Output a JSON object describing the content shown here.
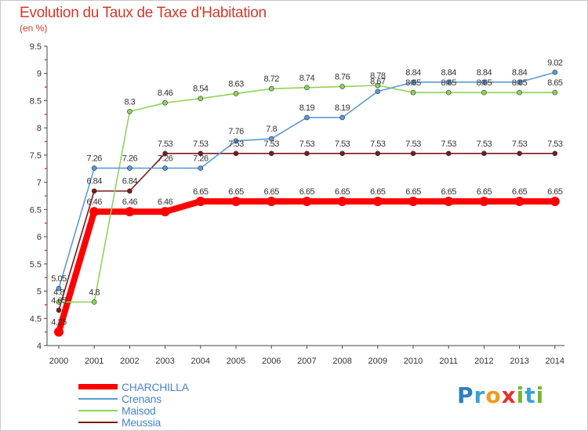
{
  "title": "Evolution du Taux de Taxe d'Habitation",
  "subtitle": "(en %)",
  "logo": {
    "text": "Proxiti",
    "letters": [
      "P",
      "r",
      "o",
      "x",
      "i",
      "t",
      "i"
    ],
    "colors": [
      "#2a7fc1",
      "#3aa3d6",
      "#f39a1e",
      "#e0342a",
      "#77b82a",
      "#3aa3d6",
      "#77b82a"
    ]
  },
  "chart_data": {
    "type": "line",
    "title": "Evolution du Taux de Taxe d'Habitation",
    "ylabel": "(en %)",
    "xlabel": "",
    "x": [
      2000,
      2001,
      2002,
      2003,
      2004,
      2005,
      2006,
      2007,
      2008,
      2009,
      2010,
      2011,
      2012,
      2013,
      2014
    ],
    "ylim": [
      4,
      9.5
    ],
    "yticks": [
      4,
      4.5,
      5,
      5.5,
      6,
      6.5,
      7,
      7.5,
      8,
      8.5,
      9,
      9.5
    ],
    "grid": false,
    "legend": "bottom-left",
    "series": [
      {
        "name": "CHARCHILLA",
        "color": "#ff0000",
        "values": [
          4.25,
          6.46,
          6.46,
          6.46,
          6.65,
          6.65,
          6.65,
          6.65,
          6.65,
          6.65,
          6.65,
          6.65,
          6.65,
          6.65,
          6.65
        ],
        "labels": [
          "4.25",
          "6.46",
          "6.46",
          "6.46",
          "6.65",
          "6.65",
          "6.65",
          "6.65",
          "6.65",
          "6.65",
          "6.65",
          "6.65",
          "6.65",
          "6.65",
          "6.65"
        ]
      },
      {
        "name": "Crenans",
        "color": "#5a9ad6",
        "values": [
          5.05,
          7.26,
          7.26,
          7.26,
          7.26,
          7.76,
          7.8,
          8.19,
          8.19,
          8.67,
          8.84,
          8.84,
          8.84,
          8.84,
          9.02
        ],
        "labels": [
          "5.05",
          "7.26",
          "7.26",
          "7.26",
          "7.26",
          "7.76",
          "7.8",
          "8.19",
          "8.19",
          "8.67",
          "8.84",
          "8.84",
          "8.84",
          "8.84",
          "9.02"
        ]
      },
      {
        "name": "Maisod",
        "color": "#8ed35a",
        "values": [
          4.8,
          4.8,
          8.3,
          8.46,
          8.54,
          8.63,
          8.72,
          8.74,
          8.76,
          8.78,
          8.65,
          8.65,
          8.65,
          8.65,
          8.65
        ],
        "labels": [
          "4.8",
          "4.8",
          "8.3",
          "8.46",
          "8.54",
          "8.63",
          "8.72",
          "8.74",
          "8.76",
          "8.78",
          "8.65",
          "8.65",
          "8.65",
          "8.65",
          "8.65"
        ]
      },
      {
        "name": "Meussia",
        "color": "#7b1a1a",
        "values": [
          4.65,
          6.84,
          6.84,
          7.53,
          7.53,
          7.53,
          7.53,
          7.53,
          7.53,
          7.53,
          7.53,
          7.53,
          7.53,
          7.53,
          7.53
        ],
        "labels": [
          "4.65",
          "6.84",
          "6.84",
          "7.53",
          "7.53",
          "7.53",
          "7.53",
          "7.53",
          "7.53",
          "7.53",
          "7.53",
          "7.53",
          "7.53",
          "7.53",
          "7.53"
        ]
      }
    ]
  }
}
